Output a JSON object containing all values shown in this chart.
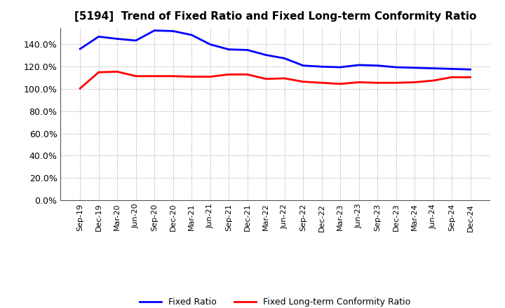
{
  "title": "[5194]  Trend of Fixed Ratio and Fixed Long-term Conformity Ratio",
  "x_labels": [
    "Sep-19",
    "Dec-19",
    "Mar-20",
    "Jun-20",
    "Sep-20",
    "Dec-20",
    "Mar-21",
    "Jun-21",
    "Sep-21",
    "Dec-21",
    "Mar-22",
    "Jun-22",
    "Sep-22",
    "Dec-22",
    "Mar-23",
    "Jun-23",
    "Sep-23",
    "Dec-23",
    "Mar-24",
    "Jun-24",
    "Sep-24",
    "Dec-24"
  ],
  "fixed_ratio": [
    136.0,
    147.0,
    145.0,
    143.5,
    152.5,
    152.0,
    148.5,
    140.0,
    135.5,
    135.0,
    130.5,
    127.5,
    121.0,
    120.0,
    119.5,
    121.5,
    121.0,
    119.5,
    119.0,
    118.5,
    118.0,
    117.5
  ],
  "fixed_lt_ratio": [
    100.5,
    115.0,
    115.5,
    111.5,
    111.5,
    111.5,
    111.0,
    111.0,
    113.0,
    113.0,
    109.0,
    109.5,
    106.5,
    105.5,
    104.5,
    106.0,
    105.5,
    105.5,
    106.0,
    107.5,
    110.5,
    110.5
  ],
  "line_color_fixed": "#0000FF",
  "line_color_lt": "#FF0000",
  "ylim": [
    0,
    155
  ],
  "yticks": [
    0,
    20,
    40,
    60,
    80,
    100,
    120,
    140
  ],
  "legend_labels": [
    "Fixed Ratio",
    "Fixed Long-term Conformity Ratio"
  ],
  "background_color": "#FFFFFF",
  "grid_color": "#AAAAAA"
}
